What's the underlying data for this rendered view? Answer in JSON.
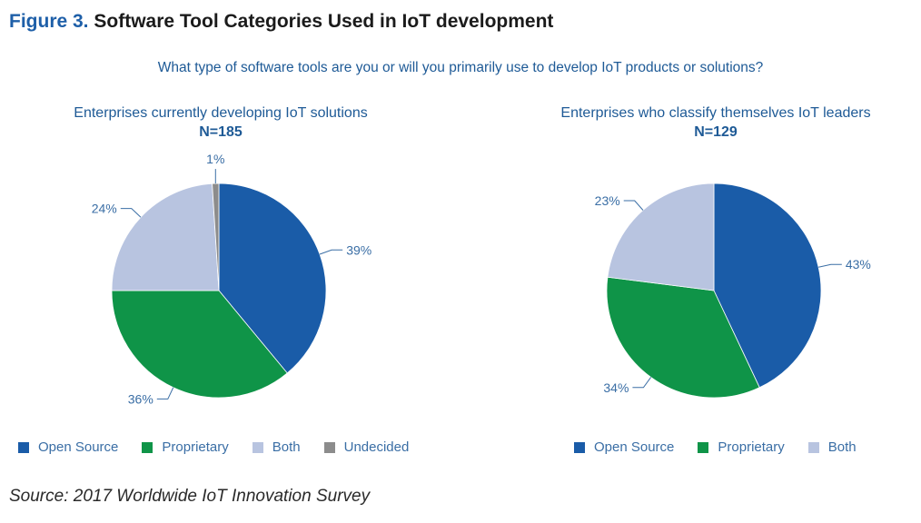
{
  "figure": {
    "number": "Figure 3.",
    "title": "Software Tool Categories Used in IoT development"
  },
  "question": "What type of software tools are you or will you primarily use to develop IoT products or solutions?",
  "source": "Source: 2017 Worldwide IoT Innovation Survey",
  "colors": {
    "open_source": "#1a5ca8",
    "proprietary": "#0f9448",
    "both": "#b8c4e0",
    "undecided": "#8c8c8c"
  },
  "chart_data": [
    {
      "type": "pie",
      "title": "Enterprises currently developing IoT solutions",
      "subtitle": "N=185",
      "slices": [
        {
          "label": "Open Source",
          "value": 39,
          "value_label": "39%"
        },
        {
          "label": "Proprietary",
          "value": 36,
          "value_label": "36%"
        },
        {
          "label": "Both",
          "value": 24,
          "value_label": "24%"
        },
        {
          "label": "Undecided",
          "value": 1,
          "value_label": "1%"
        }
      ],
      "legend": [
        "Open Source",
        "Proprietary",
        "Both",
        "Undecided"
      ],
      "legend_position": "bottom"
    },
    {
      "type": "pie",
      "title": "Enterprises who classify themselves IoT leaders",
      "subtitle": "N=129",
      "slices": [
        {
          "label": "Open Source",
          "value": 43,
          "value_label": "43%"
        },
        {
          "label": "Proprietary",
          "value": 34,
          "value_label": "34%"
        },
        {
          "label": "Both",
          "value": 23,
          "value_label": "23%"
        }
      ],
      "legend": [
        "Open Source",
        "Proprietary",
        "Both"
      ],
      "legend_position": "bottom"
    }
  ]
}
